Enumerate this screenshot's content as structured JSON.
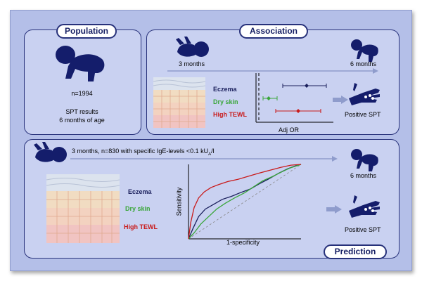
{
  "sections": {
    "population": "Population",
    "association": "Association",
    "prediction": "Prediction"
  },
  "population": {
    "n": "n=1994",
    "spt_line1": "SPT results",
    "spt_line2": "6 months of age"
  },
  "association": {
    "from_age": "3 months",
    "to_age": "6 months",
    "outcome": "Positive SPT",
    "xlabel": "Adj OR"
  },
  "prediction": {
    "header_main": "3 months, n=830 with specific IgE-levels <0.1 kU",
    "header_sub": "A",
    "header_tail": "/l",
    "to_age": "6 months",
    "outcome": "Positive SPT"
  },
  "colors": {
    "eczema": "#1a1f5c",
    "dry_skin": "#3aa63a",
    "high_tewl": "#c91a1a",
    "silhouette": "#141d6b",
    "frame": "#b4bfe8",
    "panel": "#c9d1f1"
  },
  "chart_data": [
    {
      "type": "forest",
      "xlabel": "Adj OR",
      "reference_line": "dashed",
      "series": [
        {
          "name": "Eczema",
          "color": "#1a1f5c",
          "estimate": 0.72,
          "ci": [
            0.38,
            1.0
          ]
        },
        {
          "name": "Dry skin",
          "color": "#3aa63a",
          "estimate": 0.18,
          "ci": [
            0.1,
            0.3
          ]
        },
        {
          "name": "High TEWL",
          "color": "#c91a1a",
          "estimate": 0.6,
          "ci": [
            0.28,
            0.92
          ]
        }
      ]
    },
    {
      "type": "line",
      "xlabel": "1-specificity",
      "ylabel": "Sensitivity",
      "xlim": [
        0,
        1
      ],
      "ylim": [
        0,
        1
      ],
      "diagonal": true,
      "series": [
        {
          "name": "Eczema",
          "color": "#1a1f5c",
          "x": [
            0,
            0.04,
            0.09,
            0.15,
            0.22,
            0.3,
            0.38,
            0.46,
            0.55,
            0.63,
            0.72,
            0.8,
            0.88,
            0.95,
            1
          ],
          "y": [
            0,
            0.14,
            0.3,
            0.4,
            0.46,
            0.53,
            0.57,
            0.62,
            0.67,
            0.74,
            0.81,
            0.88,
            0.94,
            0.98,
            1
          ]
        },
        {
          "name": "Dry skin",
          "color": "#3aa63a",
          "x": [
            0,
            0.05,
            0.11,
            0.18,
            0.25,
            0.33,
            0.41,
            0.5,
            0.58,
            0.66,
            0.75,
            0.83,
            0.9,
            0.96,
            1
          ],
          "y": [
            0,
            0.08,
            0.2,
            0.3,
            0.4,
            0.48,
            0.55,
            0.62,
            0.7,
            0.78,
            0.84,
            0.9,
            0.95,
            0.98,
            1
          ]
        },
        {
          "name": "High TEWL",
          "color": "#c91a1a",
          "x": [
            0,
            0.02,
            0.05,
            0.09,
            0.14,
            0.2,
            0.27,
            0.35,
            0.44,
            0.53,
            0.62,
            0.72,
            0.82,
            0.91,
            1
          ],
          "y": [
            0,
            0.22,
            0.42,
            0.55,
            0.63,
            0.69,
            0.73,
            0.77,
            0.8,
            0.84,
            0.88,
            0.92,
            0.96,
            0.99,
            1
          ]
        }
      ]
    }
  ]
}
